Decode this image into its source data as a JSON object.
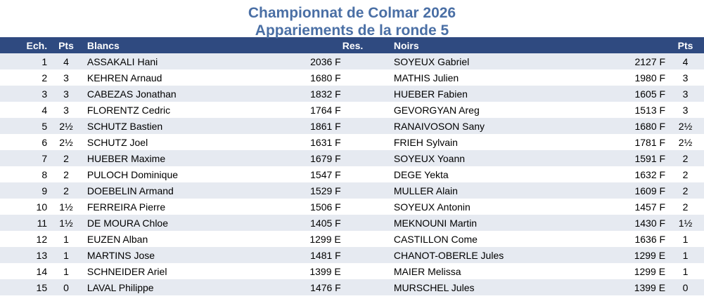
{
  "header": {
    "title_line1": "Championnat de Colmar 2026",
    "title_line2": "Appariements de la ronde 5"
  },
  "columns": {
    "ech": "Ech.",
    "pts": "Pts",
    "blancs": "Blancs",
    "res": "Res.",
    "noirs": "Noirs",
    "pts2": "Pts"
  },
  "pairings": [
    {
      "ech": "1",
      "pts_w": "4",
      "white": "ASSAKALI Hani",
      "elo_w": "2036 F",
      "res": "",
      "black": "SOYEUX Gabriel",
      "elo_b": "2127 F",
      "pts_b": "4"
    },
    {
      "ech": "2",
      "pts_w": "3",
      "white": "KEHREN Arnaud",
      "elo_w": "1680 F",
      "res": "",
      "black": "MATHIS Julien",
      "elo_b": "1980 F",
      "pts_b": "3"
    },
    {
      "ech": "3",
      "pts_w": "3",
      "white": "CABEZAS Jonathan",
      "elo_w": "1832 F",
      "res": "",
      "black": "HUEBER Fabien",
      "elo_b": "1605 F",
      "pts_b": "3"
    },
    {
      "ech": "4",
      "pts_w": "3",
      "white": "FLORENTZ Cedric",
      "elo_w": "1764 F",
      "res": "",
      "black": "GEVORGYAN Areg",
      "elo_b": "1513 F",
      "pts_b": "3"
    },
    {
      "ech": "5",
      "pts_w": "2½",
      "white": "SCHUTZ Bastien",
      "elo_w": "1861 F",
      "res": "",
      "black": "RANAIVOSON Sany",
      "elo_b": "1680 F",
      "pts_b": "2½"
    },
    {
      "ech": "6",
      "pts_w": "2½",
      "white": "SCHUTZ Joel",
      "elo_w": "1631 F",
      "res": "",
      "black": "FRIEH Sylvain",
      "elo_b": "1781 F",
      "pts_b": "2½"
    },
    {
      "ech": "7",
      "pts_w": "2",
      "white": "HUEBER Maxime",
      "elo_w": "1679 F",
      "res": "",
      "black": "SOYEUX Yoann",
      "elo_b": "1591 F",
      "pts_b": "2"
    },
    {
      "ech": "8",
      "pts_w": "2",
      "white": "PULOCH Dominique",
      "elo_w": "1547 F",
      "res": "",
      "black": "DEGE Yekta",
      "elo_b": "1632 F",
      "pts_b": "2"
    },
    {
      "ech": "9",
      "pts_w": "2",
      "white": "DOEBELIN Armand",
      "elo_w": "1529 F",
      "res": "",
      "black": "MULLER Alain",
      "elo_b": "1609 F",
      "pts_b": "2"
    },
    {
      "ech": "10",
      "pts_w": "1½",
      "white": "FERREIRA Pierre",
      "elo_w": "1506 F",
      "res": "",
      "black": "SOYEUX Antonin",
      "elo_b": "1457 F",
      "pts_b": "2"
    },
    {
      "ech": "11",
      "pts_w": "1½",
      "white": "DE MOURA Chloe",
      "elo_w": "1405 F",
      "res": "",
      "black": "MEKNOUNI Martin",
      "elo_b": "1430 F",
      "pts_b": "1½"
    },
    {
      "ech": "12",
      "pts_w": "1",
      "white": "EUZEN Alban",
      "elo_w": "1299 E",
      "res": "",
      "black": "CASTILLON Come",
      "elo_b": "1636 F",
      "pts_b": "1"
    },
    {
      "ech": "13",
      "pts_w": "1",
      "white": "MARTINS Jose",
      "elo_w": "1481 F",
      "res": "",
      "black": "CHANOT-OBERLE Jules",
      "elo_b": "1299 E",
      "pts_b": "1"
    },
    {
      "ech": "14",
      "pts_w": "1",
      "white": "SCHNEIDER Ariel",
      "elo_w": "1399 E",
      "res": "",
      "black": "MAIER Melissa",
      "elo_b": "1299 E",
      "pts_b": "1"
    },
    {
      "ech": "15",
      "pts_w": "0",
      "white": "LAVAL Philippe",
      "elo_w": "1476 F",
      "res": "",
      "black": "MURSCHEL Jules",
      "elo_b": "1399 E",
      "pts_b": "0"
    }
  ]
}
